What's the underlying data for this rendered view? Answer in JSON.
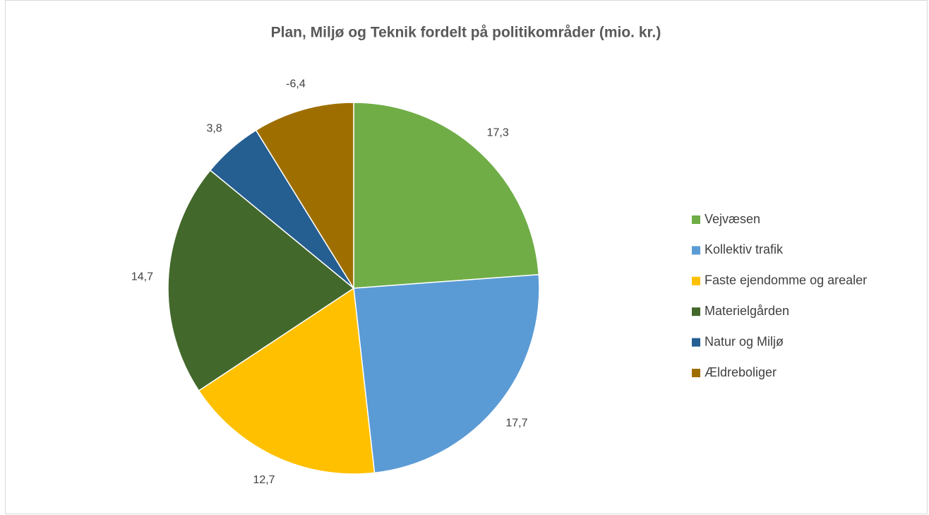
{
  "chart_data": {
    "type": "pie",
    "title": "Plan, Miljø og Teknik fordelt på politikområder (mio. kr.)",
    "categories": [
      "Vejvæsen",
      "Kollektiv trafik",
      "Faste ejendomme og arealer",
      "Materielgården",
      "Natur og Miljø",
      "Ældreboliger"
    ],
    "values": [
      17.3,
      17.7,
      12.7,
      14.7,
      3.8,
      -6.4
    ],
    "value_labels": [
      "17,3",
      "17,7",
      "12,7",
      "14,7",
      "3,8",
      "-6,4"
    ],
    "colors": [
      "#70ad47",
      "#5b9bd5",
      "#ffc000",
      "#43682b",
      "#255e91",
      "#9e6f00"
    ],
    "legend": "right"
  }
}
